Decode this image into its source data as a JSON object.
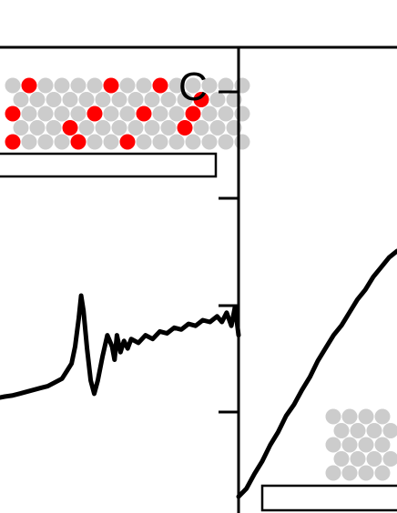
{
  "figure": {
    "panel_letter": "C",
    "colors": {
      "axis": "#000000",
      "curve": "#000000",
      "atom_grey": "#cccccc",
      "atom_red": "#ff0000",
      "substrate_fill": "#ffffff"
    }
  },
  "chart_data": [
    {
      "type": "line",
      "panel": "",
      "title": "",
      "xlabel": "",
      "ylabel": "",
      "xlim": [
        0,
        100
      ],
      "ylim": [
        0,
        100
      ],
      "grid": false,
      "legend": "none",
      "tick_labels": [],
      "series": [
        {
          "x": [
            0,
            2,
            5,
            8,
            11,
            14,
            17,
            20,
            23,
            26,
            28,
            30,
            31.5,
            33,
            34,
            35,
            36.5,
            38,
            39.5,
            41,
            43,
            45,
            47,
            48,
            49,
            50.5,
            52,
            53.5,
            55,
            58,
            61,
            64,
            67,
            70,
            73,
            76,
            79,
            82,
            85,
            88,
            91,
            93,
            95,
            97,
            98.5,
            100
          ],
          "y": [
            0,
            0.5,
            1,
            2,
            3,
            4,
            5,
            6,
            8,
            10,
            14,
            18,
            27,
            42,
            54,
            46,
            26,
            9,
            2,
            9,
            22,
            33,
            27,
            20,
            33,
            24,
            30,
            26,
            31,
            29,
            33,
            31,
            35,
            34,
            37,
            36,
            39,
            38,
            41,
            40,
            43,
            40,
            45,
            38,
            48,
            33
          ]
        }
      ],
      "inset": {
        "description_visible": false,
        "atom_rows": [
          [
            "grey",
            "red",
            "grey",
            "grey",
            "grey",
            "grey",
            "red",
            "grey",
            "grey",
            "red",
            "grey",
            "grey",
            "grey",
            "grey",
            "grey"
          ],
          [
            "grey",
            "grey",
            "grey",
            "grey",
            "grey",
            "grey",
            "grey",
            "grey",
            "grey",
            "grey",
            "grey",
            "red",
            "grey",
            "grey"
          ],
          [
            "red",
            "grey",
            "grey",
            "grey",
            "grey",
            "red",
            "grey",
            "grey",
            "red",
            "grey",
            "grey",
            "red",
            "grey",
            "grey",
            "grey"
          ],
          [
            "grey",
            "grey",
            "grey",
            "red",
            "grey",
            "grey",
            "grey",
            "grey",
            "grey",
            "grey",
            "red",
            "grey",
            "grey",
            "grey"
          ],
          [
            "red",
            "grey",
            "grey",
            "grey",
            "red",
            "grey",
            "grey",
            "red",
            "grey",
            "grey",
            "grey",
            "grey",
            "grey",
            "grey",
            "grey"
          ]
        ]
      }
    },
    {
      "type": "line",
      "panel": "C",
      "title": "",
      "xlabel": "",
      "ylabel": "",
      "xlim": [
        0,
        100
      ],
      "ylim": [
        0,
        100
      ],
      "grid": false,
      "legend": "none",
      "tick_labels": [],
      "y_ticks": [
        20,
        40,
        60,
        80
      ],
      "series": [
        {
          "x": [
            0,
            5,
            10,
            15,
            20,
            25,
            30,
            35,
            40,
            45,
            50,
            55,
            60,
            65,
            70,
            75,
            80,
            85,
            90,
            95,
            100
          ],
          "y": [
            0,
            2.5,
            7,
            11,
            16,
            20,
            25,
            28.5,
            33,
            37,
            42,
            46,
            50,
            53,
            57,
            61,
            64,
            68,
            71,
            74,
            76
          ]
        }
      ],
      "inset": {
        "description_visible": false,
        "atom_rows": [
          [
            "grey",
            "grey",
            "grey",
            "grey"
          ],
          [
            "grey",
            "grey",
            "grey",
            "grey",
            "grey"
          ],
          [
            "grey",
            "grey",
            "grey",
            "grey"
          ],
          [
            "grey",
            "grey",
            "grey",
            "grey",
            "grey"
          ],
          [
            "grey",
            "grey",
            "grey",
            "grey"
          ]
        ]
      }
    }
  ]
}
